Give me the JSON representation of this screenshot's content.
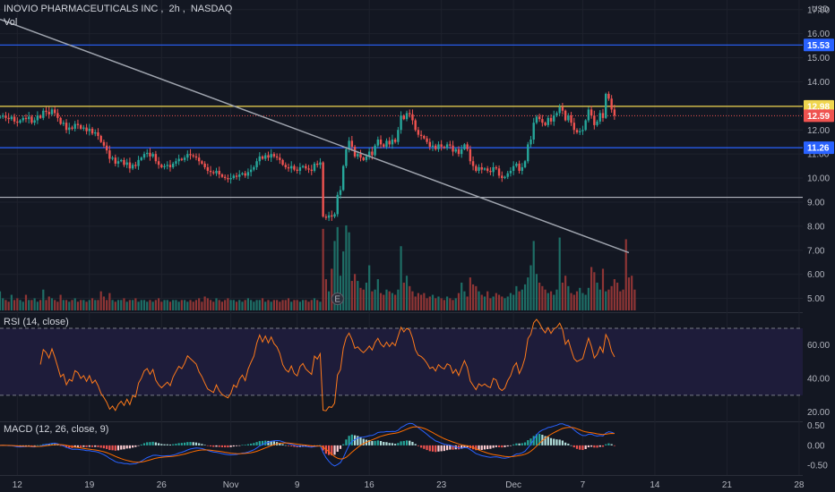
{
  "header": {
    "symbol": "INOVIO PHARMACEUTICALS INC",
    "interval": "2h",
    "exchange": "NASDAQ",
    "vol_label": "Vol",
    "currency": "USD"
  },
  "rsi_pane": {
    "label": "RSI (14, close)"
  },
  "macd_pane": {
    "label": "MACD (12, 26, close, 9)"
  },
  "earnings_marker": "E",
  "colors": {
    "background": "#131722",
    "up": "#26a69a",
    "down": "#ef5350",
    "vol_up": "#1e6e66",
    "vol_down": "#8e3535",
    "rsi_line": "#ff7a1a",
    "rsi_band": "#1e1c3a",
    "macd_line": "#2962ff",
    "signal_line": "#ff6d00",
    "level_blue": "#2962ff",
    "level_yellow": "#f0d64f",
    "level_white": "#b2b5be",
    "trendline": "#9ea3ad"
  },
  "chart_data": [
    {
      "type": "candlestick",
      "title": "INOVIO PHARMACEUTICALS INC, 2h, NASDAQ",
      "ylim": [
        4.5,
        17.4
      ],
      "y_ticks": [
        "17.00",
        "16.00",
        "15.00",
        "14.00",
        "13.00",
        "12.00",
        "11.00",
        "10.00",
        "9.00",
        "8.00",
        "7.00",
        "6.00",
        "5.00"
      ],
      "y_tick_values": [
        17,
        16,
        15,
        14,
        13,
        12,
        11,
        10,
        9,
        8,
        7,
        6,
        5
      ],
      "x_ticks": [
        "12",
        "19",
        "26",
        "Nov",
        "9",
        "16",
        "23",
        "Dec",
        "7",
        "14",
        "21",
        "28"
      ],
      "x_tick_index": [
        6,
        31,
        56,
        80,
        103,
        128,
        153,
        178,
        202,
        227,
        252,
        277
      ],
      "horizontal_levels": [
        {
          "value": 15.53,
          "label": "15.53",
          "color": "#2962ff"
        },
        {
          "value": 12.98,
          "label": "12.98",
          "color": "#f0d64f"
        },
        {
          "value": 11.26,
          "label": "11.26",
          "color": "#2962ff"
        },
        {
          "value": 9.2,
          "label": "",
          "color": "#b2b5be"
        }
      ],
      "last_price": {
        "value": 12.59,
        "label": "12.59"
      },
      "trendline": {
        "from": {
          "index": 0,
          "value": 16.6
        },
        "to": {
          "index": 218,
          "value": 6.9
        }
      },
      "earnings_index": 117,
      "closes": [
        12.55,
        12.6,
        12.5,
        12.45,
        12.55,
        12.35,
        12.3,
        12.4,
        12.5,
        12.45,
        12.55,
        12.3,
        12.4,
        12.6,
        12.5,
        12.8,
        12.75,
        12.65,
        12.85,
        12.7,
        12.5,
        12.25,
        12.3,
        12.0,
        12.1,
        12.05,
        12.25,
        12.2,
        12.05,
        12.1,
        11.95,
        12.05,
        11.85,
        11.9,
        11.75,
        11.5,
        11.35,
        11.15,
        10.8,
        10.85,
        10.6,
        10.7,
        10.75,
        10.55,
        10.65,
        10.4,
        10.55,
        10.5,
        10.75,
        10.85,
        11.0,
        11.05,
        10.9,
        11.0,
        10.7,
        10.55,
        10.45,
        10.5,
        10.55,
        10.45,
        10.6,
        10.7,
        10.8,
        10.75,
        10.85,
        11.0,
        10.95,
        10.9,
        10.85,
        10.7,
        10.6,
        10.45,
        10.3,
        10.25,
        10.2,
        10.3,
        10.15,
        10.05,
        10.0,
        9.95,
        10.0,
        10.1,
        10.05,
        10.15,
        10.2,
        10.1,
        10.25,
        10.35,
        10.45,
        10.7,
        10.9,
        10.8,
        10.95,
        10.85,
        11.0,
        10.9,
        10.85,
        10.75,
        10.55,
        10.45,
        10.4,
        10.5,
        10.35,
        10.3,
        10.45,
        10.5,
        10.4,
        10.35,
        10.3,
        10.6,
        10.55,
        10.65,
        8.4,
        8.35,
        8.45,
        8.4,
        8.5,
        9.3,
        9.5,
        10.5,
        11.2,
        11.55,
        11.3,
        10.9,
        11.0,
        10.85,
        10.75,
        10.9,
        11.1,
        10.95,
        11.35,
        11.6,
        11.4,
        11.3,
        11.55,
        11.4,
        11.6,
        11.5,
        12.0,
        12.6,
        12.45,
        12.7,
        12.65,
        12.4,
        12.0,
        11.8,
        11.75,
        11.65,
        11.5,
        11.3,
        11.35,
        11.2,
        11.4,
        11.3,
        11.25,
        11.4,
        11.35,
        11.1,
        11.2,
        11.0,
        11.2,
        11.4,
        11.2,
        10.7,
        10.5,
        10.3,
        10.45,
        10.35,
        10.4,
        10.3,
        10.25,
        10.45,
        10.4,
        10.1,
        10.0,
        10.05,
        10.2,
        10.3,
        10.5,
        10.6,
        10.3,
        10.45,
        10.7,
        11.4,
        11.6,
        12.3,
        12.55,
        12.45,
        12.3,
        12.2,
        12.5,
        12.35,
        12.6,
        12.7,
        12.95,
        12.8,
        12.4,
        12.6,
        12.3,
        12.0,
        11.9,
        11.95,
        12.0,
        12.4,
        12.85,
        12.6,
        12.2,
        12.35,
        12.7,
        12.5,
        13.5,
        13.3,
        12.85,
        12.6
      ],
      "volume": [
        0.55,
        0.35,
        0.3,
        0.25,
        0.45,
        0.3,
        0.35,
        0.3,
        0.25,
        0.45,
        0.3,
        0.3,
        0.35,
        0.25,
        0.3,
        0.6,
        0.3,
        0.4,
        0.35,
        0.3,
        0.25,
        0.45,
        0.3,
        0.3,
        0.25,
        0.3,
        0.35,
        0.25,
        0.3,
        0.3,
        0.25,
        0.3,
        0.35,
        0.3,
        0.3,
        0.55,
        0.4,
        0.3,
        0.5,
        0.3,
        0.25,
        0.3,
        0.3,
        0.35,
        0.25,
        0.3,
        0.3,
        0.35,
        0.25,
        0.3,
        0.3,
        0.25,
        0.3,
        0.25,
        0.3,
        0.35,
        0.25,
        0.3,
        0.3,
        0.25,
        0.3,
        0.3,
        0.25,
        0.3,
        0.3,
        0.25,
        0.3,
        0.25,
        0.3,
        0.35,
        0.25,
        0.4,
        0.35,
        0.3,
        0.25,
        0.35,
        0.3,
        0.25,
        0.3,
        0.35,
        0.3,
        0.3,
        0.25,
        0.3,
        0.25,
        0.3,
        0.35,
        0.3,
        0.25,
        0.3,
        0.3,
        0.35,
        0.25,
        0.3,
        0.25,
        0.3,
        0.3,
        0.25,
        0.3,
        0.3,
        0.35,
        0.25,
        0.3,
        0.3,
        0.25,
        0.3,
        0.3,
        0.25,
        0.3,
        0.35,
        0.3,
        0.25,
        2.35,
        0.9,
        0.55,
        1.2,
        2.0,
        2.4,
        1.0,
        1.7,
        2.45,
        2.25,
        0.85,
        1.05,
        0.85,
        0.65,
        0.6,
        0.8,
        1.3,
        0.55,
        0.6,
        0.9,
        0.5,
        0.45,
        0.6,
        0.55,
        0.5,
        0.45,
        0.6,
        1.85,
        0.8,
        1.0,
        0.7,
        0.55,
        0.4,
        0.5,
        0.45,
        0.5,
        0.35,
        0.4,
        0.45,
        0.35,
        0.4,
        0.35,
        0.3,
        0.4,
        0.35,
        0.3,
        0.35,
        0.5,
        0.8,
        0.55,
        0.4,
        0.95,
        0.75,
        0.7,
        0.55,
        0.45,
        0.4,
        0.55,
        0.35,
        0.4,
        0.5,
        0.45,
        0.4,
        0.35,
        0.4,
        0.5,
        0.45,
        0.7,
        0.55,
        0.6,
        0.75,
        0.95,
        1.3,
        2.0,
        1.05,
        0.8,
        0.7,
        0.6,
        0.5,
        0.55,
        0.45,
        0.6,
        2.1,
        0.8,
        1.0,
        0.7,
        0.5,
        0.45,
        0.55,
        0.65,
        0.5,
        0.45,
        0.65,
        1.25,
        1.1,
        0.8,
        0.6,
        1.2,
        0.55,
        0.6,
        0.7,
        0.9,
        0.8,
        0.55,
        0.6,
        2.05,
        0.95,
        1.0,
        0.6
      ]
    },
    {
      "type": "line",
      "title": "RSI (14, close)",
      "ylim": [
        15,
        78
      ],
      "y_ticks": [
        "60.00",
        "40.00",
        "20.00"
      ],
      "y_tick_values": [
        60,
        40,
        20
      ],
      "band": [
        30,
        70
      ]
    },
    {
      "type": "bar",
      "title": "MACD (12, 26, close, 9)",
      "ylim": [
        -0.72,
        0.58
      ],
      "y_ticks": [
        "0.50",
        "0.00",
        "-0.50"
      ],
      "y_tick_values": [
        0.5,
        0.0,
        -0.5
      ]
    }
  ]
}
